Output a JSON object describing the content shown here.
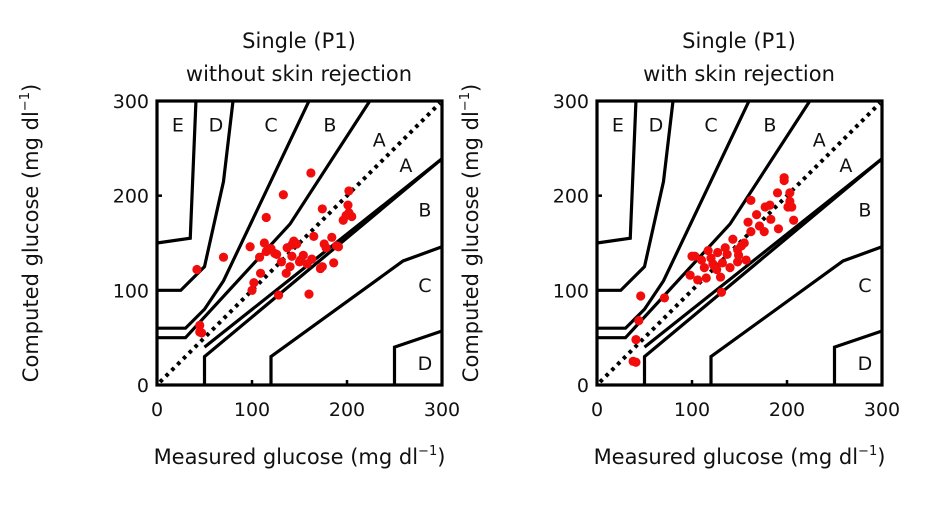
{
  "chart_data": [
    {
      "type": "scatter",
      "title": [
        "Single (P1)",
        "without skin rejection"
      ],
      "xlabel": "Measured glucose (mg dl",
      "xlabel_sup": "−1",
      "xlabel_end": ")",
      "ylabel": "Computed glucose (mg dl",
      "ylabel_sup": "−1",
      "ylabel_end": ")",
      "xlim": [
        0,
        300
      ],
      "ylim": [
        0,
        300
      ],
      "xticks": [
        0,
        100,
        200,
        300
      ],
      "yticks": [
        0,
        100,
        200,
        300
      ],
      "grid": false,
      "overlay": "Clarke error grid",
      "identity_line": "dotted y = x",
      "zone_labels": [
        {
          "text": "E",
          "x": 22,
          "y": 268
        },
        {
          "text": "D",
          "x": 62,
          "y": 268
        },
        {
          "text": "C",
          "x": 120,
          "y": 268
        },
        {
          "text": "B",
          "x": 182,
          "y": 268
        },
        {
          "text": "A",
          "x": 234,
          "y": 252
        },
        {
          "text": "A",
          "x": 262,
          "y": 225
        },
        {
          "text": "B",
          "x": 282,
          "y": 178
        },
        {
          "text": "C",
          "x": 282,
          "y": 98
        },
        {
          "text": "D",
          "x": 282,
          "y": 16
        }
      ],
      "series": [
        {
          "name": "points",
          "color": "#f20d0d",
          "points": [
            [
              162,
              224
            ],
            [
              133,
              201
            ],
            [
              202,
              205
            ],
            [
              174,
              186
            ],
            [
              115,
              177
            ],
            [
              42,
              122
            ],
            [
              70,
              135
            ],
            [
              98,
              146
            ],
            [
              100,
              100
            ],
            [
              108,
              135
            ],
            [
              113,
              150
            ],
            [
              115,
              141
            ],
            [
              120,
              144
            ],
            [
              126,
              138
            ],
            [
              128,
              95
            ],
            [
              131,
              130
            ],
            [
              137,
              145
            ],
            [
              142,
              136
            ],
            [
              142,
              148
            ],
            [
              144,
              152
            ],
            [
              147,
              149
            ],
            [
              150,
              130
            ],
            [
              151,
              132
            ],
            [
              154,
              137
            ],
            [
              158,
              128
            ],
            [
              160,
              96
            ],
            [
              163,
              133
            ],
            [
              165,
              157
            ],
            [
              172,
              123
            ],
            [
              174,
              125
            ],
            [
              176,
              149
            ],
            [
              178,
              145
            ],
            [
              184,
              156
            ],
            [
              186,
              129
            ],
            [
              189,
              147
            ],
            [
              191,
              146
            ],
            [
              196,
              174
            ],
            [
              199,
              179
            ],
            [
              202,
              182
            ],
            [
              201,
              190
            ],
            [
              205,
              178
            ],
            [
              102,
              108
            ],
            [
              45,
              63
            ],
            [
              45,
              56
            ],
            [
              47,
              55
            ],
            [
              118,
              144
            ],
            [
              124,
              139
            ],
            [
              136,
              118
            ],
            [
              140,
              125
            ],
            [
              109,
              118
            ]
          ]
        }
      ]
    },
    {
      "type": "scatter",
      "title": [
        "Single (P1)",
        "with skin rejection"
      ],
      "xlabel": "Measured glucose (mg dl",
      "xlabel_sup": "−1",
      "xlabel_end": ")",
      "ylabel": "Computed glucose (mg dl",
      "ylabel_sup": "−1",
      "ylabel_end": ")",
      "xlim": [
        0,
        300
      ],
      "ylim": [
        0,
        300
      ],
      "xticks": [
        0,
        100,
        200,
        300
      ],
      "yticks": [
        0,
        100,
        200,
        300
      ],
      "grid": false,
      "overlay": "Clarke error grid",
      "identity_line": "dotted y = x",
      "zone_labels": [
        {
          "text": "E",
          "x": 22,
          "y": 268
        },
        {
          "text": "D",
          "x": 62,
          "y": 268
        },
        {
          "text": "C",
          "x": 120,
          "y": 268
        },
        {
          "text": "B",
          "x": 182,
          "y": 268
        },
        {
          "text": "A",
          "x": 234,
          "y": 252
        },
        {
          "text": "A",
          "x": 262,
          "y": 225
        },
        {
          "text": "B",
          "x": 282,
          "y": 178
        },
        {
          "text": "C",
          "x": 282,
          "y": 98
        },
        {
          "text": "D",
          "x": 282,
          "y": 16
        }
      ],
      "series": [
        {
          "name": "points",
          "color": "#f20d0d",
          "points": [
            [
              197,
              219
            ],
            [
              197,
              216
            ],
            [
              190,
              203
            ],
            [
              162,
              195
            ],
            [
              203,
              203
            ],
            [
              203,
              194
            ],
            [
              201,
              188
            ],
            [
              205,
              188
            ],
            [
              177,
              188
            ],
            [
              182,
              190
            ],
            [
              168,
              180
            ],
            [
              183,
              175
            ],
            [
              191,
              165
            ],
            [
              159,
              172
            ],
            [
              171,
              168
            ],
            [
              162,
              162
            ],
            [
              176,
              162
            ],
            [
              143,
              154
            ],
            [
              152,
              147
            ],
            [
              149,
              137
            ],
            [
              122,
              128
            ],
            [
              103,
              136
            ],
            [
              100,
              136
            ],
            [
              117,
              142
            ],
            [
              120,
              134
            ],
            [
              110,
              132
            ],
            [
              123,
              126
            ],
            [
              132,
              129
            ],
            [
              137,
              138
            ],
            [
              148,
              130
            ],
            [
              148,
              143
            ],
            [
              157,
              132
            ],
            [
              98,
              116
            ],
            [
              106,
              111
            ],
            [
              115,
              113
            ],
            [
              130,
              114
            ],
            [
              131,
              98
            ],
            [
              126,
              122
            ],
            [
              140,
              124
            ],
            [
              113,
              124
            ],
            [
              207,
              174
            ],
            [
              46,
              94
            ],
            [
              71,
              92
            ],
            [
              44,
              68
            ],
            [
              41,
              48
            ],
            [
              38,
              25
            ],
            [
              41,
              24
            ],
            [
              127,
              140
            ],
            [
              135,
              145
            ],
            [
              155,
              150
            ]
          ]
        }
      ]
    }
  ],
  "zone_boundaries": {
    "E_upper": [
      [
        0,
        150
      ],
      [
        35,
        155
      ],
      [
        41,
        300
      ]
    ],
    "D_upper": [
      [
        0,
        100
      ],
      [
        25,
        100
      ],
      [
        50,
        125
      ],
      [
        70,
        215
      ],
      [
        80,
        300
      ]
    ],
    "C_upper": [
      [
        0,
        60
      ],
      [
        30,
        60
      ],
      [
        50,
        80
      ],
      [
        70,
        110
      ],
      [
        160,
        300
      ]
    ],
    "B_upper": [
      [
        0,
        50
      ],
      [
        30,
        50
      ],
      [
        140,
        170
      ],
      [
        224,
        300
      ]
    ],
    "A_lower": [
      [
        50,
        40
      ],
      [
        300,
        239
      ]
    ],
    "B_lower": [
      [
        50,
        0
      ],
      [
        50,
        30
      ],
      [
        300,
        239
      ]
    ],
    "C_lower": [
      [
        120,
        0
      ],
      [
        120,
        30
      ],
      [
        259,
        131
      ],
      [
        300,
        146
      ]
    ],
    "D_lower": [
      [
        250,
        0
      ],
      [
        250,
        40
      ],
      [
        300,
        57
      ]
    ]
  }
}
